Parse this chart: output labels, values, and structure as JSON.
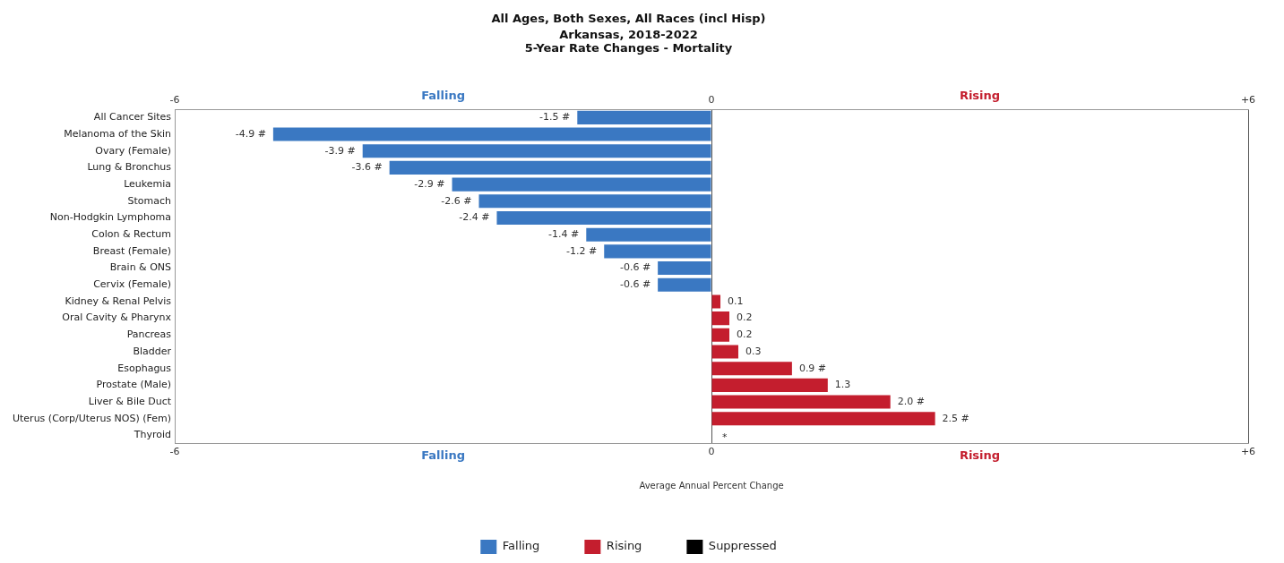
{
  "chart_data": {
    "type": "bar",
    "orientation": "horizontal",
    "title": "All Ages, Both Sexes, All Races (incl Hisp)",
    "subtitle": "Arkansas, 2018-2022\n5-Year Rate Changes - Mortality",
    "xlabel": "Average Annual Percent Change",
    "categories": [
      "All Cancer Sites",
      "Melanoma of the Skin",
      "Ovary (Female)",
      "Lung & Bronchus",
      "Leukemia",
      "Stomach",
      "Non-Hodgkin Lymphoma",
      "Colon & Rectum",
      "Breast (Female)",
      "Brain & ONS",
      "Cervix (Female)",
      "Kidney & Renal Pelvis",
      "Oral Cavity & Pharynx",
      "Pancreas",
      "Bladder",
      "Esophagus",
      "Prostate (Male)",
      "Liver & Bile Duct",
      "Uterus (Corp/Uterus NOS) (Fem)",
      "Thyroid"
    ],
    "series": [
      {
        "name": "Falling",
        "color": "#3a78c2",
        "values": [
          -1.5,
          -4.9,
          -3.9,
          -3.6,
          -2.9,
          -2.6,
          -2.4,
          -1.4,
          -1.2,
          -0.6,
          -0.6,
          null,
          null,
          null,
          null,
          null,
          null,
          null,
          null,
          null
        ],
        "value_labels": [
          "-1.5 #",
          "-4.9 #",
          "-3.9 #",
          "-3.6 #",
          "-2.9 #",
          "-2.6 #",
          "-2.4 #",
          "-1.4 #",
          "-1.2 #",
          "-0.6 #",
          "-0.6 #",
          null,
          null,
          null,
          null,
          null,
          null,
          null,
          null,
          null
        ]
      },
      {
        "name": "Rising",
        "color": "#c41e2e",
        "values": [
          null,
          null,
          null,
          null,
          null,
          null,
          null,
          null,
          null,
          null,
          null,
          0.1,
          0.2,
          0.2,
          0.3,
          0.9,
          1.3,
          2.0,
          2.5,
          null
        ],
        "value_labels": [
          null,
          null,
          null,
          null,
          null,
          null,
          null,
          null,
          null,
          null,
          null,
          "0.1",
          "0.2",
          "0.2",
          "0.3",
          "0.9 #",
          "1.3",
          "2.0 #",
          "2.5 #",
          null
        ]
      },
      {
        "name": "Suppressed",
        "color": "#000000",
        "values": [
          null,
          null,
          null,
          null,
          null,
          null,
          null,
          null,
          null,
          null,
          null,
          null,
          null,
          null,
          null,
          null,
          null,
          null,
          null,
          null
        ],
        "value_labels": [
          null,
          null,
          null,
          null,
          null,
          null,
          null,
          null,
          null,
          null,
          null,
          null,
          null,
          null,
          null,
          null,
          null,
          null,
          null,
          "*"
        ]
      }
    ],
    "xlim": [
      -6,
      6
    ],
    "xticks": [
      -6,
      0,
      {
        "value": 6,
        "label": "+6"
      }
    ],
    "x2lim": [
      -6,
      6
    ],
    "x2ticks": [
      -6,
      0,
      {
        "value": 6,
        "label": "+6"
      }
    ],
    "annotations": [
      "Falling",
      "Rising",
      "Falling",
      "Rising"
    ],
    "grid": "x",
    "legend": "bottom"
  }
}
